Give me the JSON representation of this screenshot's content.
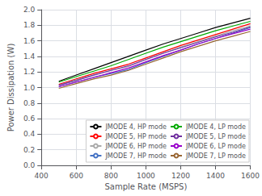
{
  "chart_data": {
    "type": "line",
    "xlabel": "Sample Rate (MSPS)",
    "ylabel": "Power Dissipation (W)",
    "xlim": [
      400,
      1600
    ],
    "ylim": [
      0,
      2
    ],
    "xticks": [
      400,
      600,
      800,
      1000,
      1200,
      1400,
      1600
    ],
    "yticks": [
      {
        "value": 0,
        "label": "0.0"
      },
      0.2,
      0.4,
      0.6,
      0.8,
      {
        "value": 1.0,
        "label": "1.0"
      },
      1.2,
      1.4,
      1.6,
      1.8,
      {
        "value": 2.0,
        "label": "2.0"
      }
    ],
    "grid": true,
    "legend": "lower right",
    "x": [
      500,
      600,
      700,
      800,
      900,
      1000,
      1100,
      1200,
      1300,
      1400,
      1500,
      1600
    ],
    "series": [
      {
        "name": "JMODE 4, HP mode",
        "color": "#000000",
        "values": [
          1.08,
          1.16,
          1.24,
          1.32,
          1.4,
          1.48,
          1.56,
          1.63,
          1.7,
          1.77,
          1.83,
          1.89
        ]
      },
      {
        "name": "JMODE 5, HP mode",
        "color": "#ff0000",
        "values": [
          1.04,
          1.11,
          1.18,
          1.24,
          1.3,
          1.38,
          1.46,
          1.54,
          1.61,
          1.68,
          1.75,
          1.82
        ]
      },
      {
        "name": "JMODE 6, HP mode",
        "color": "#aaaaaa",
        "values": [
          1.03,
          1.1,
          1.16,
          1.22,
          1.27,
          1.36,
          1.44,
          1.52,
          1.59,
          1.66,
          1.73,
          1.79
        ]
      },
      {
        "name": "JMODE 7, HP mode",
        "color": "#4472c4",
        "values": [
          1.01,
          1.07,
          1.13,
          1.18,
          1.23,
          1.32,
          1.4,
          1.48,
          1.56,
          1.63,
          1.7,
          1.77
        ]
      },
      {
        "name": "JMODE 4, LP mode",
        "color": "#00aa00",
        "values": [
          1.07,
          1.14,
          1.21,
          1.28,
          1.36,
          1.44,
          1.52,
          1.59,
          1.66,
          1.73,
          1.79,
          1.85
        ]
      },
      {
        "name": "JMODE 5, LP mode",
        "color": "#7030a0",
        "values": [
          1.03,
          1.09,
          1.16,
          1.22,
          1.28,
          1.36,
          1.44,
          1.51,
          1.58,
          1.65,
          1.71,
          1.78
        ]
      },
      {
        "name": "JMODE 6, LP mode",
        "color": "#9900cc",
        "values": [
          1.01,
          1.07,
          1.13,
          1.19,
          1.25,
          1.33,
          1.41,
          1.48,
          1.56,
          1.63,
          1.69,
          1.75
        ]
      },
      {
        "name": "JMODE 7, LP mode",
        "color": "#996633",
        "values": [
          0.99,
          1.05,
          1.11,
          1.16,
          1.22,
          1.3,
          1.38,
          1.46,
          1.53,
          1.6,
          1.66,
          1.72
        ]
      }
    ]
  }
}
